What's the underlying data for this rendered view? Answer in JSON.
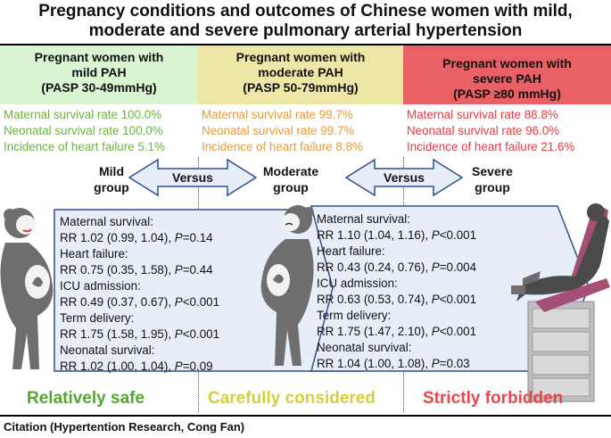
{
  "title": "Pregnancy conditions and outcomes of Chinese women with mild, moderate and severe pulmonary arterial hypertension",
  "columns": {
    "mild": {
      "line1": "Pregnant women with",
      "line2": "mild PAH",
      "line3": "(PASP 30-49mmHg)",
      "color": "#d9f5d2",
      "text_color": "#6cb33f"
    },
    "moderate": {
      "line1": "Pregnant women with",
      "line2": "moderate PAH",
      "line3": "(PASP 50-79mmHg)",
      "color": "#ece7a7",
      "text_color": "#e69a3a"
    },
    "severe": {
      "line1": "Pregnant women with",
      "line2": "severe PAH",
      "line3": "(PASP ≥80 mmHg)",
      "color": "#e96065",
      "text_color": "#e33d43"
    }
  },
  "stats": {
    "mild": [
      "Maternal survival rate 100.0%",
      "Neonatal survival rate 100.0%",
      "Incidence of heart failure 5.1%"
    ],
    "moderate": [
      "Maternal survival rate 99.7%",
      "Neonatal survival rate 99.7%",
      "Incidence of heart failure 8.8%"
    ],
    "severe": [
      "Maternal survival rate 88.8%",
      "Neonatal survival rate 96.0%",
      "Incidence of heart failure 21.6%"
    ]
  },
  "groups": {
    "mild": {
      "line1": "Mild",
      "line2": "group"
    },
    "moderate": {
      "line1": "Moderate",
      "line2": "group"
    },
    "severe": {
      "line1": "Severe",
      "line2": "group"
    }
  },
  "versus_label": "Versus",
  "comparisons": {
    "mild_vs_moderate": [
      {
        "label": "Maternal survival:",
        "rr": "RR 1.02 (0.99, 1.04), ",
        "p": "P",
        "pval": "=0.14"
      },
      {
        "label": "Heart failure:",
        "rr": "RR 0.75 (0.35, 1.58), ",
        "p": "P",
        "pval": "=0.44"
      },
      {
        "label": "ICU admission:",
        "rr": "RR 0.49 (0.37, 0.67), ",
        "p": "P",
        "pval": "<0.001"
      },
      {
        "label": "Term delivery:",
        "rr": "RR 1.75 (1.58, 1.95), ",
        "p": "P",
        "pval": "<0.001"
      },
      {
        "label": "Neonatal survival:",
        "rr": "RR 1.02 (1.00, 1.04), ",
        "p": "P",
        "pval": "=0.09"
      }
    ],
    "moderate_vs_severe": [
      {
        "label": "Maternal survival:",
        "rr": "RR 1.10 (1.04, 1.16), ",
        "p": "P",
        "pval": "<0.001"
      },
      {
        "label": "Heart failure:",
        "rr": "RR 0.43 (0.24, 0.76), ",
        "p": "P",
        "pval": "=0.004"
      },
      {
        "label": "ICU admission:",
        "rr": "RR 0.63 (0.53, 0.74), ",
        "p": "P",
        "pval": "<0.001"
      },
      {
        "label": "Term delivery:",
        "rr": "RR 1.75 (1.47, 2.10), ",
        "p": "P",
        "pval": "<0.001"
      },
      {
        "label": "Neonatal survival:",
        "rr": "RR 1.04 (1.00, 1.08), ",
        "p": "P",
        "pval": "=0.03"
      }
    ]
  },
  "verdicts": {
    "mild": {
      "text": "Relatively safe",
      "color": "#55a630"
    },
    "moderate": {
      "text": "Carefully considered",
      "color": "#d6ce3c"
    },
    "severe": {
      "text": "Strictly forbidden",
      "color": "#e8484d"
    }
  },
  "citation": "Citation (Hypertention Research, Cong Fan)",
  "icons": [
    "pregnant-woman-smiling-icon",
    "pregnant-woman-worried-icon",
    "delivery-chair-icon",
    "double-arrow-icon"
  ]
}
